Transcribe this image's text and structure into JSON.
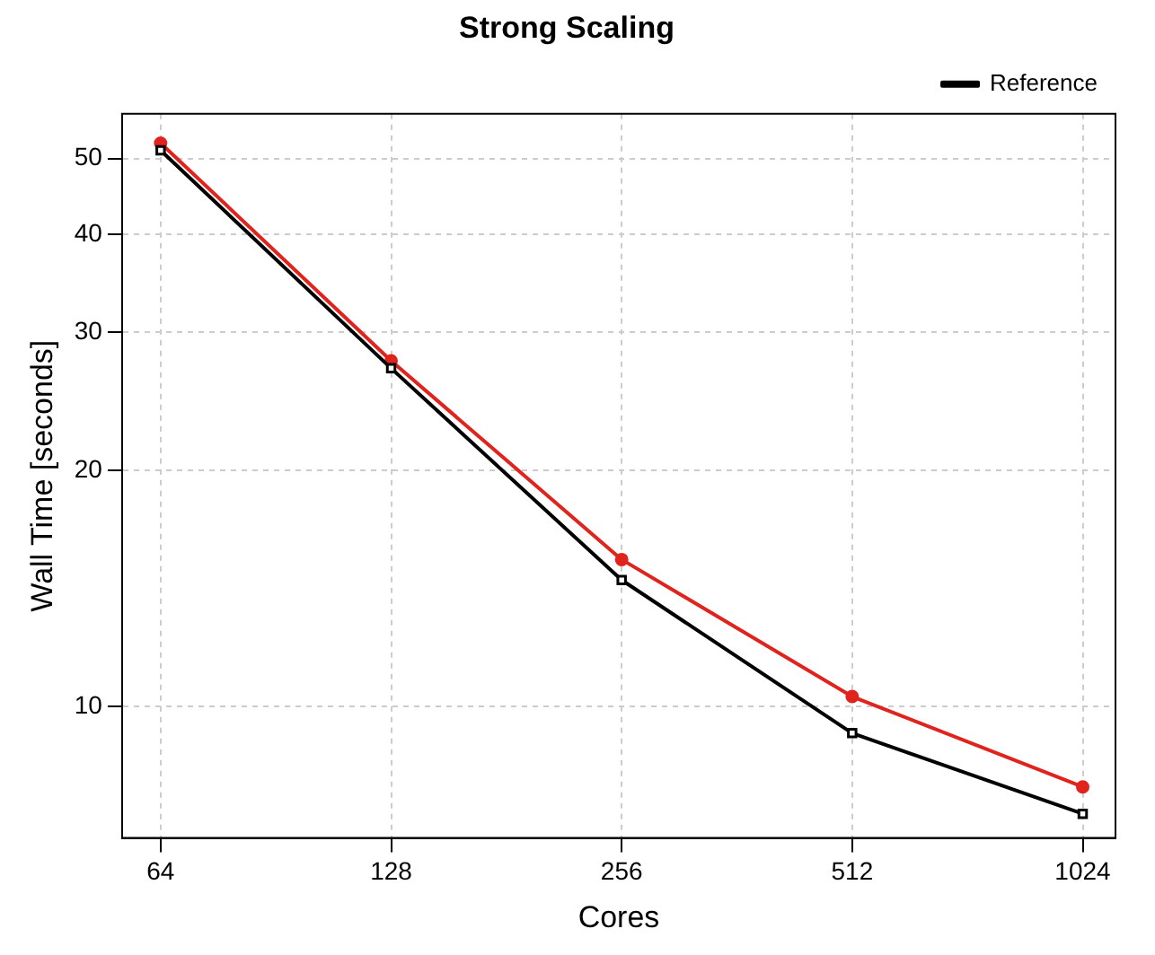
{
  "chart_data": {
    "type": "line",
    "title": "Strong Scaling",
    "xlabel": "Cores",
    "ylabel": "Wall Time [seconds]",
    "x": [
      64,
      128,
      256,
      512,
      1024
    ],
    "series": [
      {
        "name": "Reference",
        "color": "#000000",
        "marker": "square",
        "values": [
          51.2,
          27.0,
          14.5,
          9.25,
          7.3
        ]
      },
      {
        "color": "#e0231c",
        "marker": "circle",
        "values": [
          52.3,
          27.6,
          15.4,
          10.3,
          7.9
        ]
      }
    ],
    "log": "xy",
    "xlim": [
      57,
      1130
    ],
    "xticks": [
      64,
      128,
      256,
      512,
      1024
    ],
    "ylim": [
      6.8,
      57
    ],
    "yticks": [
      10,
      20,
      30,
      40,
      50
    ],
    "grid": true,
    "legend": "top right",
    "line_style": "solid"
  }
}
